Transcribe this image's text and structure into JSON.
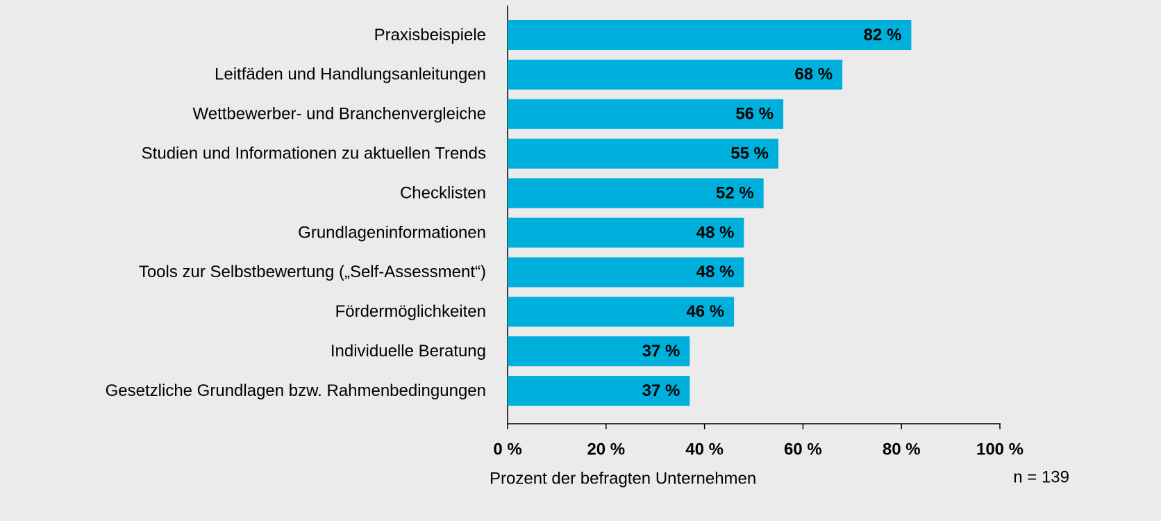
{
  "chart_data": {
    "type": "bar",
    "orientation": "horizontal",
    "categories": [
      "Praxisbeispiele",
      "Leitfäden und Handlungsanleitungen",
      "Wettbewerber- und Branchenvergleiche",
      "Studien und Informationen zu aktuellen Trends",
      "Checklisten",
      "Grundlageninformationen",
      "Tools zur Selbstbewertung („Self-Assessment“)",
      "Fördermöglichkeiten",
      "Individuelle Beratung",
      "Gesetzliche Grundlagen bzw. Rahmenbedingungen"
    ],
    "values": [
      82,
      68,
      56,
      55,
      52,
      48,
      48,
      46,
      37,
      37
    ],
    "value_labels": [
      "82 %",
      "68 %",
      "56 %",
      "55 %",
      "52 %",
      "48 %",
      "48 %",
      "46 %",
      "37 %",
      "37 %"
    ],
    "color": "#00b0dc",
    "xlim": [
      0,
      100
    ],
    "xticks": [
      {
        "value": 0,
        "label": "0 %"
      },
      {
        "value": 20,
        "label": "20 %"
      },
      {
        "value": 40,
        "label": "40 %"
      },
      {
        "value": 60,
        "label": "60 %"
      },
      {
        "value": 80,
        "label": "80 %"
      },
      {
        "value": 100,
        "label": "100 %"
      }
    ],
    "x_label": "Prozent der befragten Unternehmen",
    "annotation": "n = 139"
  }
}
